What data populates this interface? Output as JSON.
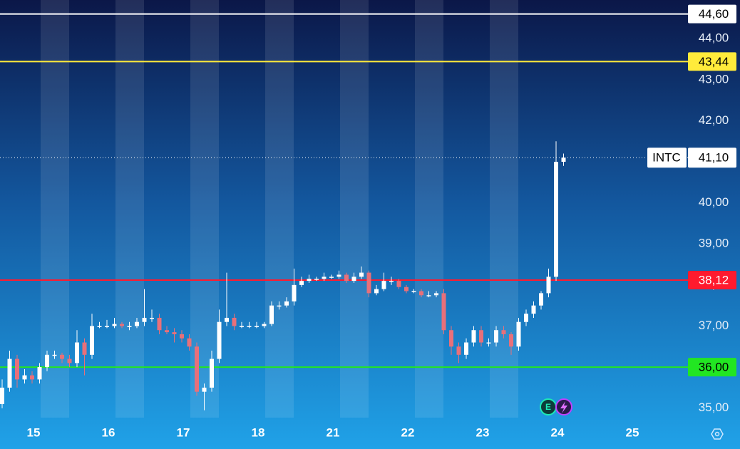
{
  "chart_data": {
    "type": "candlestick",
    "symbol": "INTC",
    "x_labels": [
      "15",
      "16",
      "17",
      "18",
      "21",
      "22",
      "23",
      "24",
      "25"
    ],
    "open": [
      35.1,
      35.5,
      36.2,
      35.7,
      35.8,
      35.7,
      36.0,
      36.3,
      36.3,
      36.2,
      36.1,
      36.6,
      36.3,
      37.0,
      37.0,
      37.0,
      37.05,
      37.0,
      37.0,
      37.1,
      37.2,
      37.2,
      36.9,
      36.85,
      36.8,
      36.7,
      36.5,
      35.4,
      35.5,
      36.2,
      37.1,
      37.2,
      37.0,
      37.0,
      37.0,
      37.0,
      37.05,
      37.5,
      37.5,
      37.6,
      38.0,
      38.1,
      38.15,
      38.15,
      38.2,
      38.2,
      38.25,
      38.1,
      38.2,
      38.3,
      37.8,
      37.9,
      38.1,
      38.1,
      37.95,
      37.85,
      37.85,
      37.75,
      37.75,
      37.8,
      36.9,
      36.5,
      36.3,
      36.6,
      36.9,
      36.6,
      36.6,
      36.9,
      36.8,
      36.5,
      37.1,
      37.3,
      37.5,
      37.8,
      38.2,
      41.0
    ],
    "high": [
      35.7,
      36.4,
      36.3,
      35.95,
      35.9,
      36.1,
      36.4,
      36.4,
      36.35,
      36.3,
      36.9,
      36.7,
      37.3,
      37.1,
      37.15,
      37.2,
      37.1,
      37.1,
      37.2,
      37.9,
      37.4,
      37.3,
      37.0,
      36.95,
      36.9,
      36.8,
      36.6,
      35.6,
      36.4,
      37.4,
      38.3,
      37.3,
      37.1,
      37.1,
      37.1,
      37.1,
      37.6,
      37.6,
      37.7,
      38.4,
      38.2,
      38.25,
      38.2,
      38.3,
      38.25,
      38.35,
      38.3,
      38.3,
      38.45,
      38.35,
      38.0,
      38.3,
      38.2,
      38.15,
      38.0,
      37.9,
      37.9,
      37.85,
      37.85,
      37.9,
      37.0,
      36.6,
      36.7,
      37.0,
      37.0,
      36.7,
      37.0,
      37.0,
      36.85,
      37.2,
      37.4,
      37.6,
      37.85,
      38.4,
      41.5,
      41.2
    ],
    "low": [
      35.0,
      35.4,
      35.5,
      35.6,
      35.6,
      35.6,
      35.9,
      36.2,
      36.1,
      36.0,
      36.0,
      35.8,
      36.2,
      36.95,
      36.95,
      36.95,
      36.95,
      36.9,
      36.95,
      37.0,
      37.1,
      36.8,
      36.8,
      36.6,
      36.6,
      36.4,
      35.3,
      34.95,
      35.4,
      36.1,
      37.0,
      36.9,
      36.95,
      36.95,
      36.95,
      36.95,
      37.0,
      37.4,
      37.45,
      37.5,
      37.95,
      38.05,
      38.1,
      38.1,
      38.15,
      38.15,
      38.05,
      38.05,
      38.15,
      37.7,
      37.75,
      37.85,
      38.0,
      37.9,
      37.8,
      37.8,
      37.7,
      37.7,
      37.7,
      36.8,
      36.3,
      36.1,
      36.2,
      36.5,
      36.5,
      36.5,
      36.5,
      36.7,
      36.3,
      36.4,
      37.0,
      37.2,
      37.4,
      37.7,
      38.1,
      40.9
    ],
    "close": [
      35.5,
      36.2,
      35.7,
      35.8,
      35.7,
      36.0,
      36.3,
      36.3,
      36.2,
      36.1,
      36.6,
      36.3,
      37.0,
      37.0,
      37.0,
      37.05,
      37.0,
      37.0,
      37.1,
      37.2,
      37.2,
      36.9,
      36.85,
      36.8,
      36.7,
      36.5,
      35.4,
      35.5,
      36.2,
      37.1,
      37.2,
      37.0,
      37.0,
      37.0,
      37.0,
      37.05,
      37.5,
      37.5,
      37.6,
      38.0,
      38.1,
      38.15,
      38.15,
      38.2,
      38.2,
      38.25,
      38.1,
      38.2,
      38.3,
      37.8,
      37.9,
      38.1,
      38.1,
      37.95,
      37.85,
      37.85,
      37.75,
      37.75,
      37.8,
      36.9,
      36.5,
      36.3,
      36.6,
      36.9,
      36.6,
      36.6,
      36.9,
      36.8,
      36.5,
      37.1,
      37.3,
      37.5,
      37.8,
      38.2,
      41.0,
      41.1
    ],
    "up_color": "#ffffff",
    "down_color": "#e8707a",
    "ylim": [
      34.7,
      44.94
    ],
    "yticks": [
      {
        "value": 35,
        "label": "35,00"
      },
      {
        "value": 36,
        "label": "36,00"
      },
      {
        "value": 37,
        "label": "37,00"
      },
      {
        "value": 38,
        "label": "38,00"
      },
      {
        "value": 39,
        "label": "39,00"
      },
      {
        "value": 40,
        "label": "40,00"
      },
      {
        "value": 41,
        "label": "41,00"
      },
      {
        "value": 42,
        "label": "42,00"
      },
      {
        "value": 43,
        "label": "43,00"
      },
      {
        "value": 44,
        "label": "44,00"
      }
    ],
    "levels": [
      {
        "value": 44.6,
        "label": "44,60",
        "color": "#ffffff",
        "text_color": "#000000"
      },
      {
        "value": 43.44,
        "label": "43,44",
        "color": "#ffeb3b",
        "text_color": "#000000"
      },
      {
        "value": 38.12,
        "label": "38,12",
        "color": "#ff1a2e",
        "text_color": "#ffffff"
      },
      {
        "value": 36.0,
        "label": "36,00",
        "color": "#22e622",
        "text_color": "#000000"
      }
    ],
    "last_price": {
      "value": 41.1,
      "label": "41,10"
    }
  }
}
